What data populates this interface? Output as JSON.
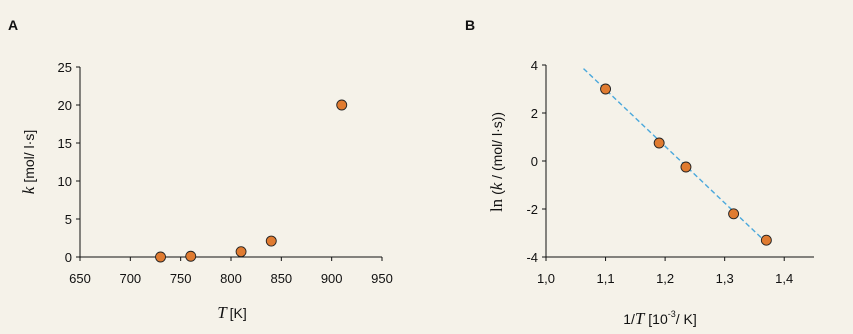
{
  "chart_data": [
    {
      "type": "scatter",
      "panel_label": "A",
      "x": [
        730,
        760,
        810,
        840,
        910
      ],
      "y": [
        0.0,
        0.1,
        0.7,
        2.1,
        20.0
      ],
      "xlim": [
        650,
        950
      ],
      "ylim": [
        0,
        25
      ],
      "x_ticks": [
        650,
        700,
        750,
        800,
        850,
        900,
        950
      ],
      "y_ticks": [
        0,
        5,
        10,
        15,
        20,
        25
      ],
      "x_tick_labels": [
        "650",
        "700",
        "750",
        "800",
        "850",
        "900",
        "950"
      ],
      "y_tick_labels": [
        "0",
        "5",
        "10",
        "15",
        "20",
        "25"
      ],
      "xlabel": {
        "variable": "T",
        "unit": "[K]"
      },
      "ylabel": {
        "variable": "k",
        "unit": "[mol/ l·s]"
      },
      "grid": false,
      "marker_color": "#e07b30",
      "marker_edge_color": "#222222"
    },
    {
      "type": "scatter",
      "panel_label": "B",
      "x": [
        1.1,
        1.19,
        1.235,
        1.315,
        1.37
      ],
      "y": [
        3.0,
        0.75,
        -0.25,
        -2.2,
        -3.3
      ],
      "xlim": [
        1.0,
        1.45
      ],
      "ylim": [
        -4,
        4
      ],
      "x_ticks": [
        1.0,
        1.1,
        1.2,
        1.3,
        1.4
      ],
      "y_ticks": [
        -4,
        -2,
        0,
        2,
        4
      ],
      "x_tick_labels": [
        "1,0",
        "1,1",
        "1,2",
        "1,3",
        "1,4"
      ],
      "y_tick_labels": [
        "-4",
        "-2",
        "0",
        "2",
        "4"
      ],
      "xlabel": {
        "prefix": "1/",
        "variable": "T",
        "bracket_open": " [10",
        "exponent": "-3",
        "suffix": "/ K]"
      },
      "ylabel": {
        "function": "ln",
        "open": " (",
        "variable": "k",
        "rest": " / (mol/ l·s))"
      },
      "fit_line": {
        "x": [
          1.063,
          1.37
        ],
        "y": [
          3.85,
          -3.4
        ],
        "color": "#4aa8dc",
        "style": "dashed"
      },
      "grid": false,
      "marker_color": "#e07b30",
      "marker_edge_color": "#222222"
    }
  ]
}
